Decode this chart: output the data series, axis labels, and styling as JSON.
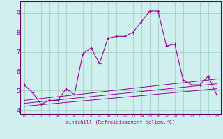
{
  "xlabel": "Windchill (Refroidissement éolien,°C)",
  "bg_color": "#cff0ee",
  "grid_color": "#99ccbb",
  "line_color": "#990099",
  "spine_color": "#660066",
  "xlim": [
    -0.5,
    23.5
  ],
  "ylim": [
    3.8,
    9.6
  ],
  "xticks": [
    0,
    1,
    2,
    3,
    4,
    5,
    6,
    7,
    8,
    9,
    10,
    11,
    12,
    13,
    14,
    15,
    16,
    17,
    18,
    19,
    20,
    21,
    22,
    23
  ],
  "yticks": [
    4,
    5,
    6,
    7,
    8,
    9
  ],
  "series_main": {
    "x": [
      0,
      1,
      2,
      3,
      4,
      5,
      6,
      7,
      8,
      9,
      10,
      11,
      12,
      13,
      14,
      15,
      16,
      17,
      18,
      19,
      20,
      21,
      22,
      23
    ],
    "y": [
      5.3,
      4.9,
      4.3,
      4.5,
      4.5,
      5.1,
      4.8,
      6.9,
      7.2,
      6.4,
      7.7,
      7.8,
      7.8,
      8.0,
      8.55,
      9.1,
      9.1,
      7.3,
      7.4,
      5.55,
      5.3,
      5.3,
      5.75,
      4.8
    ]
  },
  "series_linear": [
    {
      "x": [
        0,
        23
      ],
      "y": [
        4.5,
        5.6
      ]
    },
    {
      "x": [
        0,
        23
      ],
      "y": [
        4.35,
        5.35
      ]
    },
    {
      "x": [
        0,
        23
      ],
      "y": [
        4.2,
        5.1
      ]
    }
  ]
}
